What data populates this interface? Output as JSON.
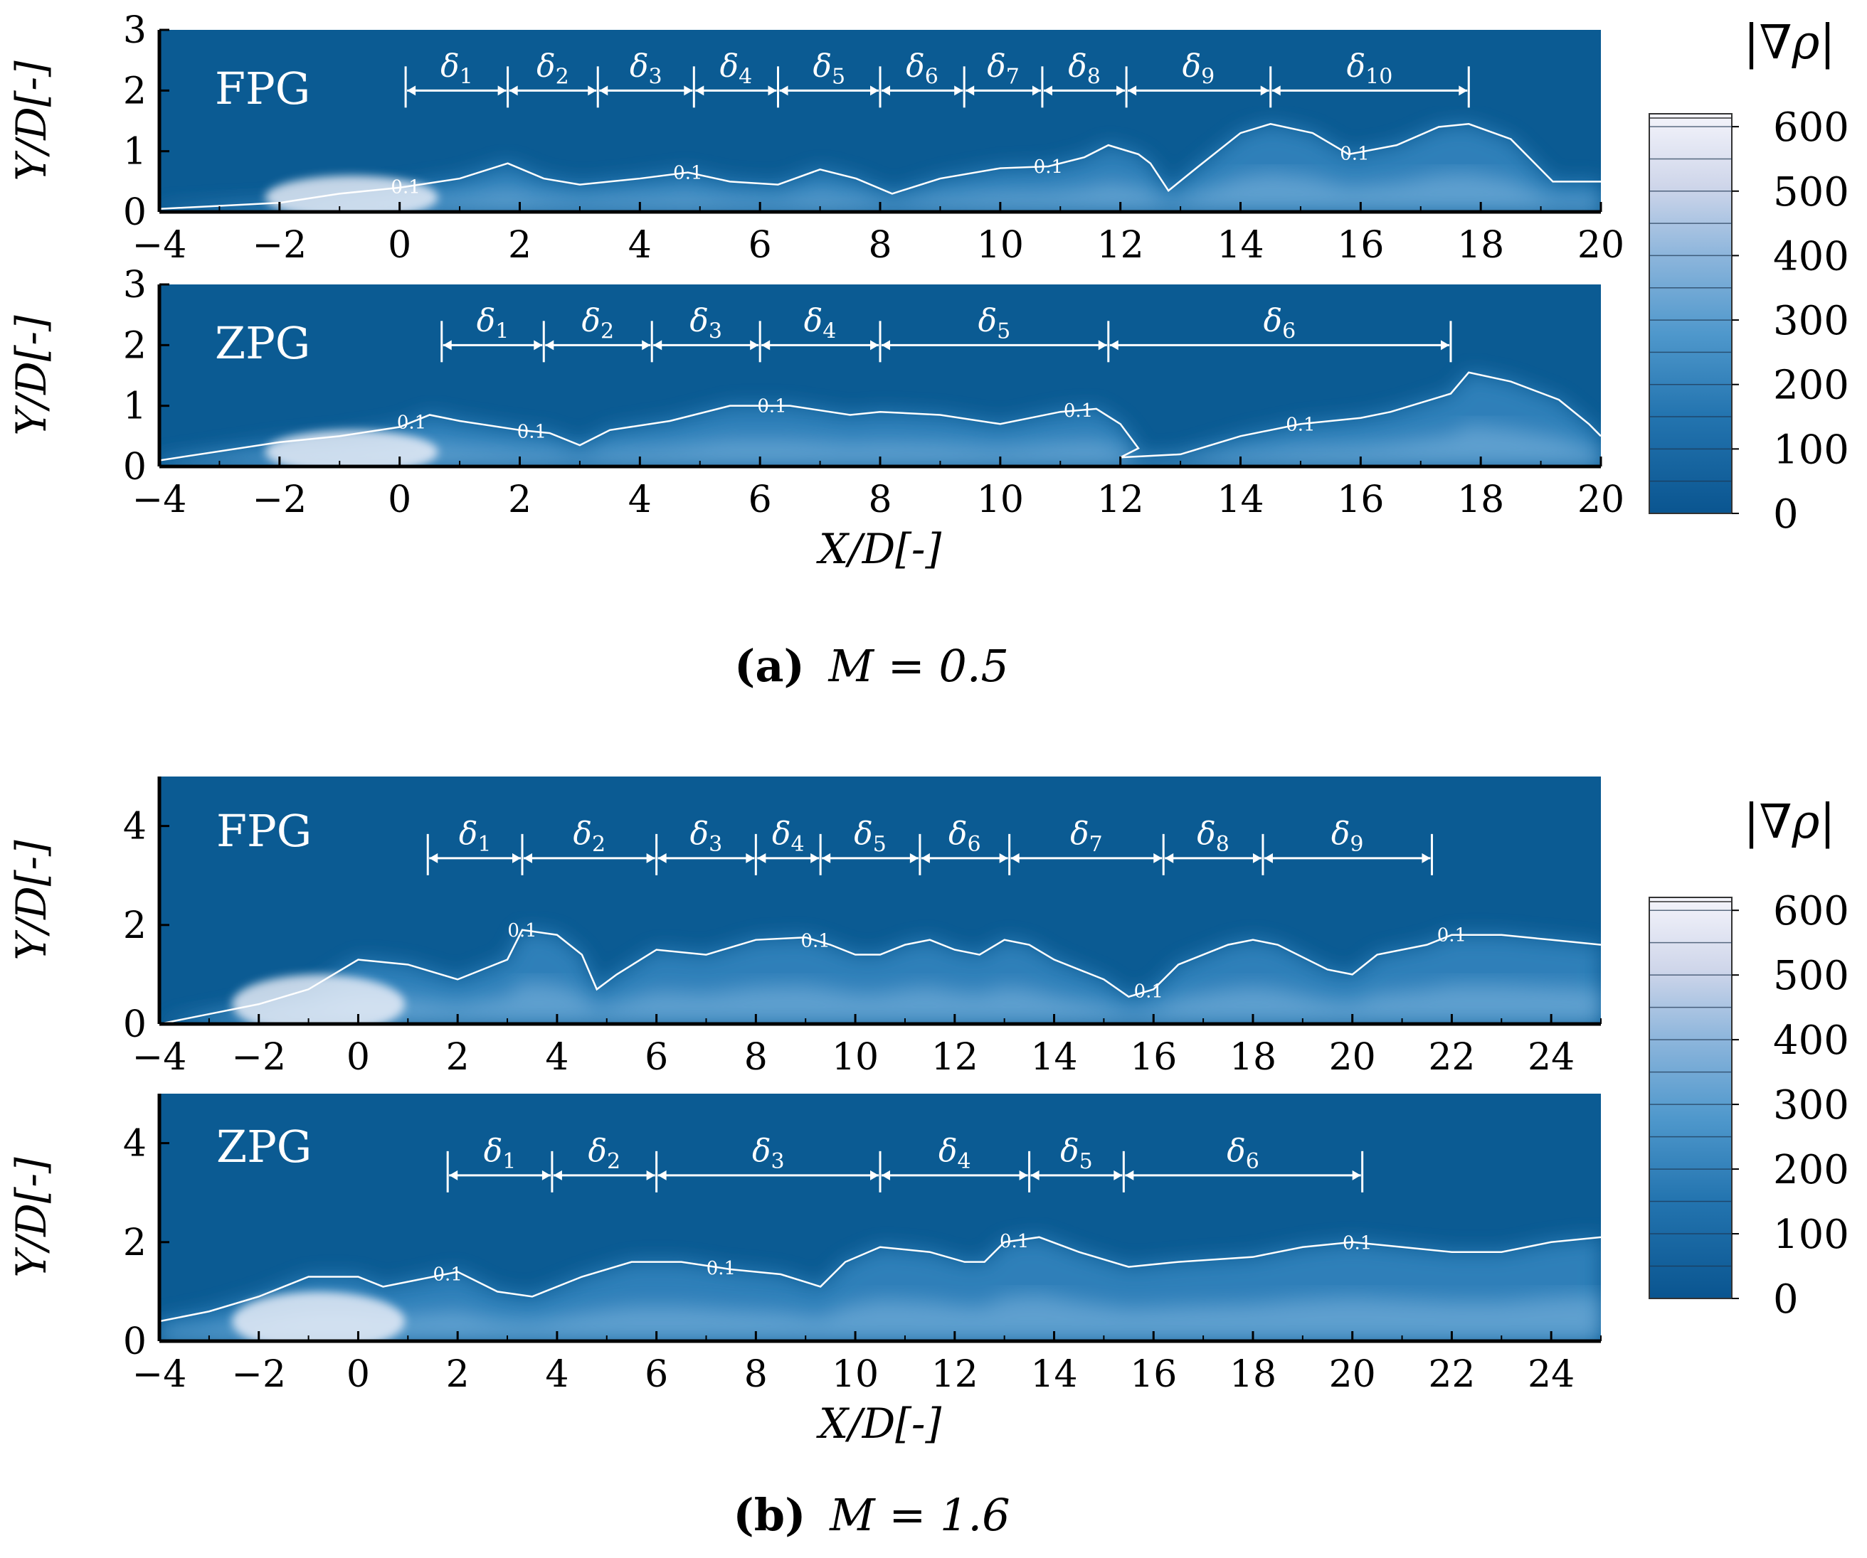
{
  "colors": {
    "background_blue": "#0b5b93",
    "high_gradient": "#f2f2fa",
    "mid_gradient": "#3e8fc8",
    "low_gradient": "#0b5b93",
    "annotation_white": "#ffffff"
  },
  "chart_data": [
    {
      "type": "heatmap",
      "panel": "a",
      "caption_letter": "(a)",
      "caption_text": "M = 0.5",
      "colorbar": {
        "title": "|∇ρ|",
        "ticks": [
          "600",
          "500",
          "400",
          "300",
          "200",
          "100",
          "0"
        ],
        "range": [
          0,
          620
        ]
      },
      "subplots": [
        {
          "name": "FPG",
          "xlabel": "",
          "ylabel": "Y/D[-]",
          "xlim": [
            -4,
            20
          ],
          "ylim": [
            0,
            3
          ],
          "xticks": [
            -4,
            -2,
            0,
            2,
            4,
            6,
            8,
            10,
            12,
            14,
            16,
            18,
            20
          ],
          "yticks": [
            0,
            1,
            2,
            3
          ],
          "delta_bounds": [
            0.1,
            1.8,
            3.3,
            4.9,
            6.3,
            8.0,
            9.4,
            10.7,
            12.1,
            14.5,
            17.8
          ],
          "delta_labels": [
            "δ1",
            "δ2",
            "δ3",
            "δ4",
            "δ5",
            "δ6",
            "δ7",
            "δ8",
            "δ9",
            "δ10"
          ],
          "contour_value": "0.1",
          "contour_label_x": [
            0.1,
            4.8,
            10.8,
            15.9
          ],
          "contour": [
            [
              -4,
              0.05
            ],
            [
              -3,
              0.1
            ],
            [
              -2,
              0.15
            ],
            [
              -1,
              0.3
            ],
            [
              0,
              0.4
            ],
            [
              1,
              0.55
            ],
            [
              1.8,
              0.8
            ],
            [
              2.4,
              0.55
            ],
            [
              3,
              0.45
            ],
            [
              4,
              0.55
            ],
            [
              4.8,
              0.65
            ],
            [
              5.5,
              0.5
            ],
            [
              6.3,
              0.45
            ],
            [
              7,
              0.7
            ],
            [
              7.6,
              0.55
            ],
            [
              8.2,
              0.3
            ],
            [
              9,
              0.55
            ],
            [
              10,
              0.72
            ],
            [
              10.8,
              0.75
            ],
            [
              11.4,
              0.9
            ],
            [
              11.8,
              1.1
            ],
            [
              12.3,
              0.95
            ],
            [
              12.5,
              0.8
            ],
            [
              12.8,
              0.35
            ],
            [
              13.3,
              0.75
            ],
            [
              14,
              1.3
            ],
            [
              14.5,
              1.45
            ],
            [
              15.2,
              1.3
            ],
            [
              15.8,
              0.95
            ],
            [
              16.6,
              1.1
            ],
            [
              17.3,
              1.4
            ],
            [
              17.8,
              1.45
            ],
            [
              18.5,
              1.2
            ],
            [
              19.2,
              0.5
            ],
            [
              20,
              0.5
            ]
          ]
        },
        {
          "name": "ZPG",
          "xlabel": "X/D[-]",
          "ylabel": "Y/D[-]",
          "xlim": [
            -4,
            20
          ],
          "ylim": [
            0,
            3
          ],
          "xticks": [
            -4,
            -2,
            0,
            2,
            4,
            6,
            8,
            10,
            12,
            14,
            16,
            18,
            20
          ],
          "yticks": [
            0,
            1,
            2,
            3
          ],
          "delta_bounds": [
            0.7,
            2.4,
            4.2,
            6.0,
            8.0,
            11.8,
            17.5
          ],
          "delta_labels": [
            "δ1",
            "δ2",
            "δ3",
            "δ4",
            "δ5",
            "δ6"
          ],
          "contour_value": "0.1",
          "contour_label_x": [
            0.2,
            2.2,
            6.2,
            11.3,
            15.0
          ],
          "contour": [
            [
              -4,
              0.1
            ],
            [
              -3,
              0.25
            ],
            [
              -2,
              0.4
            ],
            [
              -1,
              0.5
            ],
            [
              0,
              0.65
            ],
            [
              0.5,
              0.85
            ],
            [
              1,
              0.75
            ],
            [
              2,
              0.6
            ],
            [
              2.5,
              0.55
            ],
            [
              3,
              0.35
            ],
            [
              3.5,
              0.6
            ],
            [
              4.5,
              0.75
            ],
            [
              5.5,
              1.0
            ],
            [
              6.5,
              1.0
            ],
            [
              7.5,
              0.85
            ],
            [
              8,
              0.9
            ],
            [
              9,
              0.85
            ],
            [
              10,
              0.7
            ],
            [
              11,
              0.9
            ],
            [
              11.6,
              0.95
            ],
            [
              12.0,
              0.7
            ],
            [
              12.3,
              0.3
            ],
            [
              12.0,
              0.15
            ],
            [
              13,
              0.2
            ],
            [
              14,
              0.5
            ],
            [
              15.0,
              0.7
            ],
            [
              16,
              0.8
            ],
            [
              16.5,
              0.9
            ],
            [
              17.5,
              1.2
            ],
            [
              17.8,
              1.55
            ],
            [
              18.5,
              1.4
            ],
            [
              19.3,
              1.1
            ],
            [
              19.8,
              0.7
            ],
            [
              20,
              0.5
            ]
          ]
        }
      ]
    },
    {
      "type": "heatmap",
      "panel": "b",
      "caption_letter": "(b)",
      "caption_text": "M = 1.6",
      "colorbar": {
        "title": "|∇ρ|",
        "ticks": [
          "600",
          "500",
          "400",
          "300",
          "200",
          "100",
          "0"
        ],
        "range": [
          0,
          620
        ]
      },
      "subplots": [
        {
          "name": "FPG",
          "xlabel": "",
          "ylabel": "Y/D[-]",
          "xlim": [
            -4,
            25
          ],
          "ylim": [
            0,
            5
          ],
          "xticks": [
            -4,
            -2,
            0,
            2,
            4,
            6,
            8,
            10,
            12,
            14,
            16,
            18,
            20,
            22,
            24
          ],
          "yticks": [
            0,
            2,
            4
          ],
          "delta_bounds": [
            1.4,
            3.3,
            6.0,
            8.0,
            9.3,
            11.3,
            13.1,
            16.2,
            18.2,
            21.6
          ],
          "delta_labels": [
            "δ1",
            "δ2",
            "δ3",
            "δ4",
            "δ5",
            "δ6",
            "δ7",
            "δ8",
            "δ9"
          ],
          "contour_value": "0.1",
          "contour_label_x": [
            3.3,
            9.2,
            15.9,
            22.0
          ],
          "contour": [
            [
              -4,
              0.0
            ],
            [
              -3,
              0.2
            ],
            [
              -2,
              0.4
            ],
            [
              -1,
              0.7
            ],
            [
              0,
              1.3
            ],
            [
              1,
              1.2
            ],
            [
              2,
              0.9
            ],
            [
              3,
              1.3
            ],
            [
              3.3,
              1.9
            ],
            [
              4,
              1.8
            ],
            [
              4.5,
              1.4
            ],
            [
              4.8,
              0.7
            ],
            [
              5.2,
              1.0
            ],
            [
              6,
              1.5
            ],
            [
              7,
              1.4
            ],
            [
              8,
              1.7
            ],
            [
              9,
              1.75
            ],
            [
              9.5,
              1.6
            ],
            [
              10,
              1.4
            ],
            [
              10.5,
              1.4
            ],
            [
              11,
              1.6
            ],
            [
              11.5,
              1.7
            ],
            [
              12,
              1.5
            ],
            [
              12.5,
              1.4
            ],
            [
              13,
              1.7
            ],
            [
              13.5,
              1.6
            ],
            [
              14,
              1.3
            ],
            [
              15,
              0.9
            ],
            [
              15.5,
              0.55
            ],
            [
              16.0,
              0.7
            ],
            [
              16.5,
              1.2
            ],
            [
              17.5,
              1.6
            ],
            [
              18,
              1.7
            ],
            [
              18.5,
              1.6
            ],
            [
              19.5,
              1.1
            ],
            [
              20,
              1.0
            ],
            [
              20.5,
              1.4
            ],
            [
              21.5,
              1.6
            ],
            [
              22,
              1.8
            ],
            [
              23,
              1.8
            ],
            [
              24,
              1.7
            ],
            [
              25,
              1.6
            ]
          ]
        },
        {
          "name": "ZPG",
          "xlabel": "X/D[-]",
          "ylabel": "Y/D[-]",
          "xlim": [
            -4,
            25
          ],
          "ylim": [
            0,
            5
          ],
          "xticks": [
            -4,
            -2,
            0,
            2,
            4,
            6,
            8,
            10,
            12,
            14,
            16,
            18,
            20,
            22,
            24
          ],
          "yticks": [
            0,
            2,
            4
          ],
          "delta_bounds": [
            1.8,
            3.9,
            6.0,
            10.5,
            13.5,
            15.4,
            20.2
          ],
          "delta_labels": [
            "δ1",
            "δ2",
            "δ3",
            "δ4",
            "δ5",
            "δ6"
          ],
          "contour_value": "0.1",
          "contour_label_x": [
            1.8,
            7.3,
            13.2,
            20.1
          ],
          "contour": [
            [
              -4,
              0.4
            ],
            [
              -3,
              0.6
            ],
            [
              -2,
              0.9
            ],
            [
              -1,
              1.3
            ],
            [
              0,
              1.3
            ],
            [
              0.5,
              1.1
            ],
            [
              1,
              1.2
            ],
            [
              2,
              1.4
            ],
            [
              2.8,
              1.0
            ],
            [
              3.5,
              0.9
            ],
            [
              4.5,
              1.3
            ],
            [
              5.5,
              1.6
            ],
            [
              6.5,
              1.6
            ],
            [
              7.5,
              1.45
            ],
            [
              8.5,
              1.35
            ],
            [
              9.3,
              1.1
            ],
            [
              9.8,
              1.6
            ],
            [
              10.5,
              1.9
            ],
            [
              11.5,
              1.8
            ],
            [
              12.2,
              1.6
            ],
            [
              12.6,
              1.6
            ],
            [
              13.0,
              2.0
            ],
            [
              13.7,
              2.1
            ],
            [
              14.5,
              1.8
            ],
            [
              15.5,
              1.5
            ],
            [
              16.5,
              1.6
            ],
            [
              18,
              1.7
            ],
            [
              19,
              1.9
            ],
            [
              20,
              2.0
            ],
            [
              21,
              1.9
            ],
            [
              22,
              1.8
            ],
            [
              23,
              1.8
            ],
            [
              24,
              2.0
            ],
            [
              25,
              2.1
            ]
          ]
        }
      ]
    }
  ]
}
